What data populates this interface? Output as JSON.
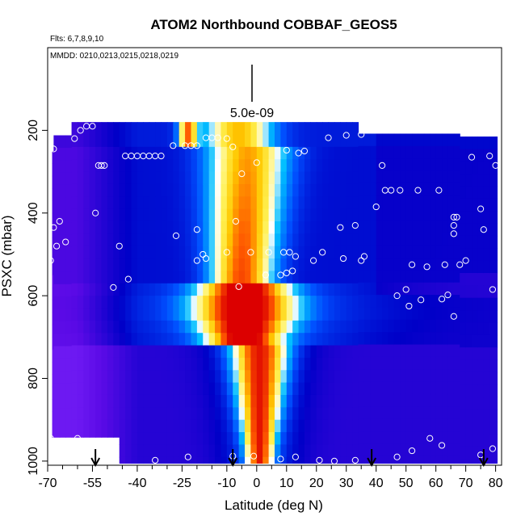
{
  "chart_data": {
    "type": "heatmap",
    "title": "ATOM2 Northbound COBBAF_GEOS5",
    "flights_label": "Flts: 6,7,8,9,10",
    "mmdd_label": "MMDD: 0210,0213,0215,0218,0219",
    "scale_label": "5.0e-09",
    "xlabel": "Latitude (deg N)",
    "ylabel": "PSXC (mbar)",
    "xlim": [
      -70,
      82
    ],
    "ylim": [
      1010,
      0
    ],
    "x_ticks": [
      -70,
      -55,
      -40,
      -25,
      -10,
      0,
      10,
      20,
      30,
      40,
      50,
      60,
      70,
      80
    ],
    "x_tick_labels": [
      "-70",
      "-55",
      "-40",
      "-25",
      "-10",
      "0",
      "10",
      "20",
      "30",
      "40",
      "50",
      "60",
      "70",
      "80"
    ],
    "x_minor_ticks": [
      -65,
      -60,
      -50,
      -45,
      -35,
      -30,
      -20,
      -15,
      -5,
      5,
      15,
      25,
      35,
      45,
      55,
      65,
      75
    ],
    "y_ticks": [
      200,
      400,
      600,
      800,
      1000
    ],
    "y_tick_labels": [
      "200",
      "400",
      "600",
      "800",
      "1000"
    ],
    "arrows_lat": [
      -54,
      -8,
      38.5,
      76
    ],
    "observation_points": [
      [
        -57,
        190
      ],
      [
        -55,
        190
      ],
      [
        -59,
        200
      ],
      [
        -61,
        220
      ],
      [
        -68,
        245
      ],
      [
        -53,
        285
      ],
      [
        -52,
        285
      ],
      [
        -51,
        285
      ],
      [
        -44,
        262
      ],
      [
        -42,
        262
      ],
      [
        -40,
        262
      ],
      [
        -38,
        262
      ],
      [
        -36,
        262
      ],
      [
        -34,
        262
      ],
      [
        -32,
        262
      ],
      [
        -28,
        237
      ],
      [
        -24,
        237
      ],
      [
        -22,
        237
      ],
      [
        -20,
        237
      ],
      [
        -17,
        218
      ],
      [
        -15,
        218
      ],
      [
        -13,
        218
      ],
      [
        -10,
        220
      ],
      [
        -5,
        305
      ],
      [
        -8,
        240
      ],
      [
        0,
        278
      ],
      [
        10,
        248
      ],
      [
        14,
        255
      ],
      [
        16,
        250
      ],
      [
        24,
        218
      ],
      [
        30,
        212
      ],
      [
        35,
        210
      ],
      [
        -54,
        400
      ],
      [
        -66,
        420
      ],
      [
        -68,
        435
      ],
      [
        -67,
        480
      ],
      [
        -64,
        470
      ],
      [
        -46,
        480
      ],
      [
        -27,
        455
      ],
      [
        -20,
        440
      ],
      [
        -7,
        420
      ],
      [
        -18,
        500
      ],
      [
        -20,
        515
      ],
      [
        -17,
        510
      ],
      [
        -10,
        495
      ],
      [
        -2,
        495
      ],
      [
        4,
        495
      ],
      [
        9,
        495
      ],
      [
        11,
        495
      ],
      [
        13,
        505
      ],
      [
        19,
        515
      ],
      [
        22,
        495
      ],
      [
        28,
        435
      ],
      [
        33,
        430
      ],
      [
        29,
        510
      ],
      [
        35,
        515
      ],
      [
        36,
        505
      ],
      [
        3,
        550
      ],
      [
        8,
        550
      ],
      [
        10,
        545
      ],
      [
        12,
        540
      ],
      [
        -6,
        578
      ],
      [
        -48,
        580
      ],
      [
        -43,
        560
      ],
      [
        -69,
        515
      ],
      [
        42,
        285
      ],
      [
        43,
        345
      ],
      [
        45,
        345
      ],
      [
        40,
        385
      ],
      [
        48,
        345
      ],
      [
        54,
        345
      ],
      [
        61,
        345
      ],
      [
        72,
        265
      ],
      [
        78,
        262
      ],
      [
        80,
        285
      ],
      [
        66,
        410
      ],
      [
        67,
        410
      ],
      [
        75,
        390
      ],
      [
        66,
        430
      ],
      [
        76,
        440
      ],
      [
        66,
        450
      ],
      [
        52,
        525
      ],
      [
        57,
        530
      ],
      [
        63,
        525
      ],
      [
        68,
        525
      ],
      [
        70,
        515
      ],
      [
        47,
        600
      ],
      [
        50,
        585
      ],
      [
        51,
        625
      ],
      [
        55,
        610
      ],
      [
        64,
        598
      ],
      [
        62,
        608
      ],
      [
        66,
        650
      ],
      [
        79,
        585
      ],
      [
        -69,
        945
      ],
      [
        -60,
        945
      ],
      [
        -34,
        998
      ],
      [
        -23,
        990
      ],
      [
        -8,
        988
      ],
      [
        -1,
        988
      ],
      [
        8,
        995
      ],
      [
        13,
        990
      ],
      [
        21,
        998
      ],
      [
        26,
        1000
      ],
      [
        33,
        998
      ],
      [
        47,
        990
      ],
      [
        52,
        975
      ],
      [
        58,
        945
      ],
      [
        62,
        962
      ],
      [
        75,
        985
      ],
      [
        79,
        970
      ]
    ]
  }
}
